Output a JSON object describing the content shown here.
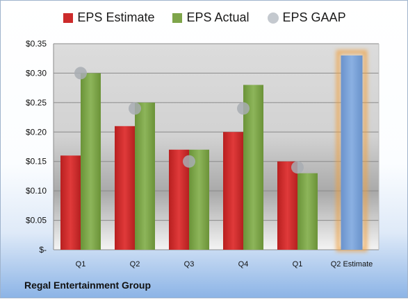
{
  "chart_data": {
    "type": "bar",
    "categories": [
      "Q1",
      "Q2",
      "Q3",
      "Q4",
      "Q1",
      "Q2 Estimate"
    ],
    "series": [
      {
        "name": "EPS Estimate",
        "values": [
          0.16,
          0.21,
          0.17,
          0.2,
          0.15,
          null
        ]
      },
      {
        "name": "EPS Actual",
        "values": [
          0.3,
          0.25,
          0.17,
          0.28,
          0.13,
          null
        ]
      },
      {
        "name": "EPS GAAP",
        "values": [
          0.3,
          0.24,
          0.15,
          0.24,
          0.14,
          null
        ]
      },
      {
        "name": "",
        "values": [
          null,
          null,
          null,
          null,
          null,
          0.33
        ]
      }
    ],
    "title": "",
    "xlabel": "",
    "ylabel": "",
    "ylim": [
      0,
      0.35
    ],
    "yticks": [
      0,
      0.05,
      0.1,
      0.15,
      0.2,
      0.25,
      0.3,
      0.35
    ],
    "ytick_labels": [
      "$-",
      "$0.05",
      "$0.10",
      "$0.15",
      "$0.20",
      "$0.25",
      "$0.30",
      "$0.35"
    ],
    "grid": true,
    "legend_position": "top",
    "colors": {
      "estimate": "#cc2b2b",
      "actual": "#7ea54a",
      "gaap": "#a8adb3",
      "forecast": "#7ea4d8",
      "forecast_glow": "#f0a040"
    }
  },
  "legend": {
    "estimate": "EPS Estimate",
    "actual": "EPS Actual",
    "gaap": "EPS GAAP"
  },
  "footer": {
    "company": "Regal Entertainment Group"
  }
}
